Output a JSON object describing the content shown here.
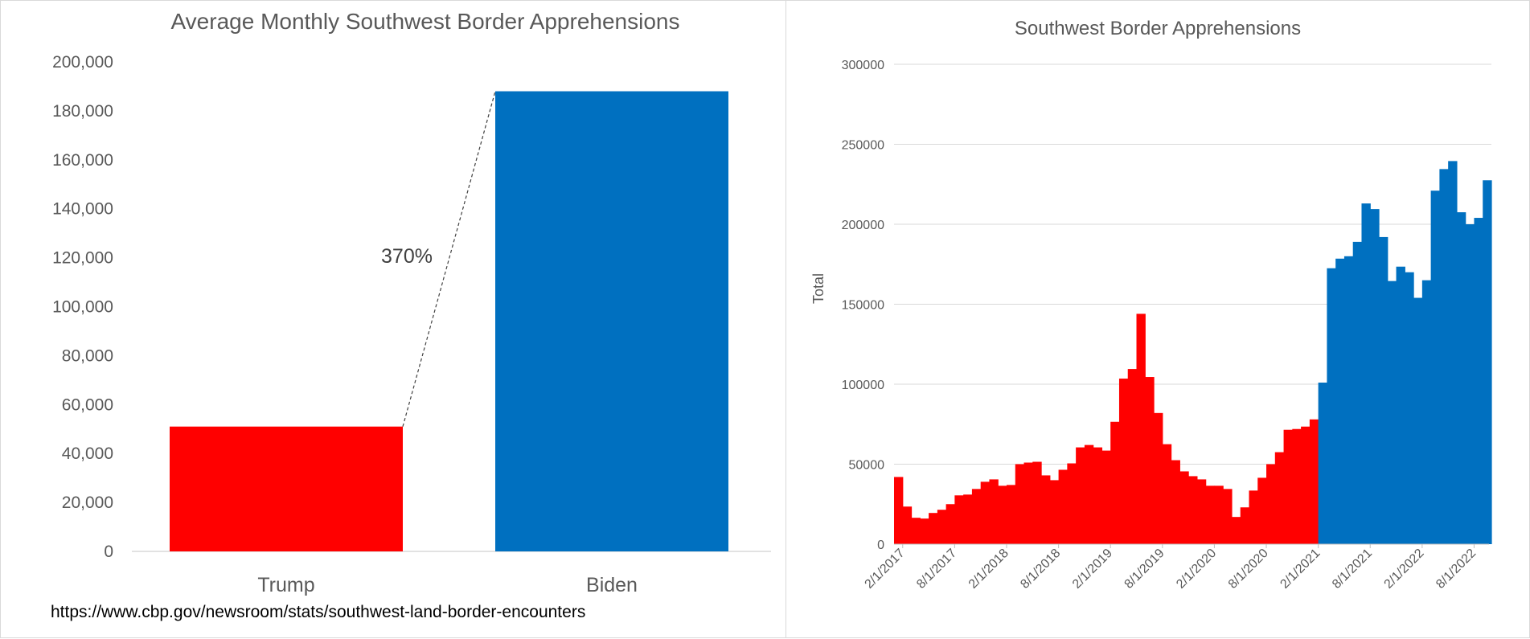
{
  "colors": {
    "trump": "#ff0000",
    "biden": "#0070c0",
    "grid": "#d9d9d9",
    "axis": "#bfbfbf"
  },
  "source_text": "https://www.cbp.gov/newsroom/stats/southwest-land-border-encounters",
  "chart_data": [
    {
      "type": "bar",
      "title": "Average Monthly Southwest Border Apprehensions",
      "categories": [
        "Trump",
        "Biden"
      ],
      "values": [
        51000,
        188000
      ],
      "bar_colors": [
        "#ff0000",
        "#0070c0"
      ],
      "ylim": [
        0,
        200000
      ],
      "yticks": [
        0,
        20000,
        40000,
        60000,
        80000,
        100000,
        120000,
        140000,
        160000,
        180000,
        200000
      ],
      "ytick_labels": [
        "0",
        "20,000",
        "40,000",
        "60,000",
        "80,000",
        "100,000",
        "120,000",
        "140,000",
        "160,000",
        "180,000",
        "200,000"
      ],
      "annotation": "370%",
      "grid": false
    },
    {
      "type": "bar",
      "title": "Southwest Border Apprehensions",
      "ylabel": "Total",
      "xlabel": "",
      "ylim": [
        0,
        300000
      ],
      "yticks": [
        0,
        50000,
        100000,
        150000,
        200000,
        250000,
        300000
      ],
      "ytick_labels": [
        "0",
        "50000",
        "100000",
        "150000",
        "200000",
        "250000",
        "300000"
      ],
      "xtick_labels": [
        "2/1/2017",
        "8/1/2017",
        "2/1/2018",
        "8/1/2018",
        "2/1/2019",
        "8/1/2019",
        "2/1/2020",
        "8/1/2020",
        "2/1/2021",
        "8/1/2021",
        "2/1/2022",
        "8/1/2022"
      ],
      "x_start": "1/1/2017",
      "grid": true,
      "series": [
        {
          "name": "Trump",
          "color": "#ff0000",
          "values": [
            42000,
            23500,
            16500,
            16000,
            19500,
            21500,
            25000,
            30500,
            31000,
            34500,
            39000,
            40500,
            36500,
            37000,
            50000,
            51000,
            51500,
            43000,
            40000,
            46500,
            50500,
            60500,
            62000,
            60500,
            58500,
            76500,
            103500,
            109500,
            144000,
            104500,
            82000,
            62500,
            52500,
            45500,
            42500,
            40500,
            36500,
            36500,
            34500,
            17000,
            23000,
            33500,
            41500,
            50000,
            57500,
            71500,
            72000,
            73500,
            78000
          ]
        },
        {
          "name": "Biden",
          "color": "#0070c0",
          "values": [
            101000,
            172500,
            178500,
            180000,
            189000,
            213000,
            209500,
            192000,
            164500,
            173500,
            170000,
            154000,
            165000,
            221000,
            234500,
            239500,
            207500,
            200000,
            204000,
            227500
          ]
        }
      ]
    }
  ]
}
